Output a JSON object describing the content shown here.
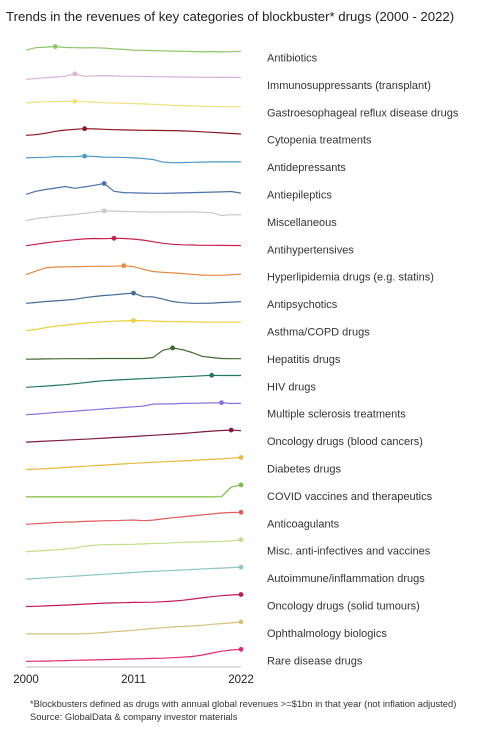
{
  "chart_data": {
    "type": "line",
    "layout": "small-multiples",
    "title": "Trends in the revenues of key categories of blockbuster* drugs (2000 - 2022)",
    "x": [
      2000,
      2001,
      2002,
      2003,
      2004,
      2005,
      2006,
      2007,
      2008,
      2009,
      2010,
      2011,
      2012,
      2013,
      2014,
      2015,
      2016,
      2017,
      2018,
      2019,
      2020,
      2021,
      2022
    ],
    "xlim": [
      2000,
      2022
    ],
    "x_ticks": [
      "2000",
      "2011",
      "2022"
    ],
    "y_scale": "relative (each row scaled to its own peak)",
    "grid": false,
    "legend": "none",
    "series": [
      {
        "name": "Antibiotics",
        "color": "#8cc665",
        "peak_year": 2003,
        "values": [
          0.7,
          0.9,
          0.95,
          1.0,
          0.92,
          0.9,
          0.88,
          0.9,
          0.87,
          0.8,
          0.76,
          0.7,
          0.68,
          0.66,
          0.64,
          0.62,
          0.6,
          0.58,
          0.55,
          0.58,
          0.55,
          0.57,
          0.6
        ]
      },
      {
        "name": "Immunosuppressants (transplant)",
        "color": "#d8b2d8",
        "peak_year": 2005,
        "values": [
          0.55,
          0.62,
          0.68,
          0.74,
          0.8,
          1.0,
          0.8,
          0.84,
          0.86,
          0.83,
          0.8,
          0.8,
          0.78,
          0.77,
          0.76,
          0.75,
          0.74,
          0.73,
          0.72,
          0.72,
          0.71,
          0.71,
          0.7
        ]
      },
      {
        "name": "Gastroesophageal reflux disease drugs",
        "color": "#f0e07a",
        "peak_year": 2005,
        "values": [
          0.86,
          0.93,
          0.96,
          0.98,
          0.98,
          1.0,
          0.96,
          0.93,
          0.88,
          0.86,
          0.83,
          0.8,
          0.78,
          0.75,
          0.72,
          0.67,
          0.64,
          0.62,
          0.6,
          0.58,
          0.56,
          0.55,
          0.55
        ]
      },
      {
        "name": "Cytopenia treatments",
        "color": "#8c1522",
        "peak_year": 2006,
        "values": [
          0.45,
          0.5,
          0.62,
          0.78,
          0.88,
          0.95,
          1.0,
          0.98,
          0.95,
          0.92,
          0.9,
          0.88,
          0.87,
          0.86,
          0.85,
          0.84,
          0.82,
          0.78,
          0.74,
          0.7,
          0.65,
          0.6,
          0.56
        ]
      },
      {
        "name": "Antidepressants",
        "color": "#4d9cc4",
        "peak_year": 2006,
        "values": [
          0.85,
          0.88,
          0.9,
          0.96,
          0.95,
          0.96,
          1.0,
          0.97,
          0.92,
          0.9,
          0.88,
          0.85,
          0.8,
          0.72,
          0.5,
          0.45,
          0.46,
          0.48,
          0.5,
          0.52,
          0.52,
          0.52,
          0.52
        ]
      },
      {
        "name": "Antiepileptics",
        "color": "#4a72ac",
        "peak_year": 2008,
        "values": [
          0.1,
          0.35,
          0.5,
          0.62,
          0.75,
          0.6,
          0.72,
          0.85,
          1.0,
          0.35,
          0.24,
          0.22,
          0.2,
          0.18,
          0.18,
          0.2,
          0.22,
          0.24,
          0.26,
          0.28,
          0.3,
          0.33,
          0.2
        ]
      },
      {
        "name": "Miscellaneous",
        "color": "#c8c8c8",
        "peak_year": 2008,
        "values": [
          0.2,
          0.35,
          0.45,
          0.55,
          0.62,
          0.7,
          0.8,
          0.9,
          1.0,
          0.98,
          0.95,
          0.93,
          0.92,
          0.9,
          0.9,
          0.9,
          0.92,
          0.92,
          0.88,
          0.85,
          0.62,
          0.68,
          0.66
        ]
      },
      {
        "name": "Antihypertensives",
        "color": "#c8204e",
        "peak_year": 2009,
        "values": [
          0.38,
          0.5,
          0.62,
          0.72,
          0.8,
          0.88,
          0.95,
          0.98,
          0.97,
          1.0,
          0.98,
          0.93,
          0.85,
          0.72,
          0.58,
          0.5,
          0.46,
          0.44,
          0.42,
          0.42,
          0.41,
          0.4,
          0.4
        ]
      },
      {
        "name": "Hyperlipidemia drugs (e.g. statins)",
        "color": "#e58a3e",
        "peak_year": 2010,
        "values": [
          0.25,
          0.55,
          0.82,
          0.88,
          0.9,
          0.92,
          0.93,
          0.95,
          0.95,
          0.96,
          1.0,
          0.92,
          0.7,
          0.52,
          0.45,
          0.4,
          0.34,
          0.28,
          0.22,
          0.2,
          0.2,
          0.25,
          0.3
        ]
      },
      {
        "name": "Antipsychotics",
        "color": "#476a99",
        "peak_year": 2011,
        "values": [
          0.15,
          0.22,
          0.3,
          0.35,
          0.42,
          0.48,
          0.62,
          0.72,
          0.8,
          0.86,
          0.93,
          1.0,
          0.7,
          0.68,
          0.5,
          0.3,
          0.2,
          0.15,
          0.15,
          0.17,
          0.22,
          0.25,
          0.28
        ]
      },
      {
        "name": "Asthma/COPD drugs",
        "color": "#f0ce3c",
        "peak_year": 2011,
        "values": [
          0.15,
          0.25,
          0.4,
          0.52,
          0.62,
          0.7,
          0.78,
          0.85,
          0.9,
          0.94,
          0.97,
          1.0,
          0.98,
          0.95,
          0.92,
          0.9,
          0.9,
          0.88,
          0.87,
          0.86,
          0.86,
          0.86,
          0.86
        ]
      },
      {
        "name": "Hepatitis drugs",
        "color": "#436a2e",
        "peak_year": 2015,
        "values": [
          0.06,
          0.07,
          0.08,
          0.09,
          0.1,
          0.1,
          0.1,
          0.11,
          0.12,
          0.12,
          0.12,
          0.12,
          0.12,
          0.2,
          0.8,
          1.0,
          0.85,
          0.62,
          0.3,
          0.2,
          0.12,
          0.1,
          0.1
        ]
      },
      {
        "name": "HIV drugs",
        "color": "#217862",
        "peak_year": 2019,
        "values": [
          0.0,
          0.05,
          0.1,
          0.16,
          0.22,
          0.3,
          0.38,
          0.48,
          0.55,
          0.6,
          0.64,
          0.68,
          0.72,
          0.76,
          0.8,
          0.84,
          0.88,
          0.92,
          0.96,
          1.0,
          0.98,
          0.98,
          0.98
        ]
      },
      {
        "name": "Multiple sclerosis treatments",
        "color": "#8573e0",
        "peak_year": 2020,
        "values": [
          0.0,
          0.05,
          0.12,
          0.18,
          0.24,
          0.3,
          0.36,
          0.42,
          0.48,
          0.54,
          0.6,
          0.66,
          0.72,
          0.88,
          0.9,
          0.9,
          0.94,
          0.95,
          0.97,
          0.98,
          1.0,
          0.93,
          0.94
        ]
      },
      {
        "name": "Oncology drugs (blood cancers)",
        "color": "#7d1b3d",
        "peak_year": 2021,
        "values": [
          0.0,
          0.04,
          0.08,
          0.12,
          0.16,
          0.2,
          0.24,
          0.28,
          0.33,
          0.38,
          0.42,
          0.47,
          0.52,
          0.57,
          0.62,
          0.67,
          0.72,
          0.78,
          0.85,
          0.92,
          0.97,
          1.0,
          0.95
        ]
      },
      {
        "name": "Diabetes drugs",
        "color": "#e8b93a",
        "peak_year": 2022,
        "values": [
          0.0,
          0.03,
          0.07,
          0.12,
          0.17,
          0.22,
          0.27,
          0.32,
          0.37,
          0.42,
          0.47,
          0.52,
          0.56,
          0.6,
          0.64,
          0.68,
          0.72,
          0.76,
          0.8,
          0.84,
          0.88,
          0.94,
          1.0
        ]
      },
      {
        "name": "COVID vaccines and therapeutics",
        "color": "#7bbd3f",
        "peak_year": 2022,
        "values": [
          0.0,
          0.0,
          0.0,
          0.0,
          0.0,
          0.0,
          0.0,
          0.0,
          0.0,
          0.0,
          0.0,
          0.0,
          0.0,
          0.0,
          0.0,
          0.0,
          0.0,
          0.0,
          0.0,
          0.0,
          0.02,
          0.82,
          1.0
        ]
      },
      {
        "name": "Anticoagulants",
        "color": "#e25c5c",
        "peak_year": 2022,
        "values": [
          0.0,
          0.05,
          0.1,
          0.15,
          0.18,
          0.2,
          0.24,
          0.27,
          0.3,
          0.3,
          0.33,
          0.36,
          0.3,
          0.35,
          0.45,
          0.55,
          0.62,
          0.7,
          0.78,
          0.86,
          0.94,
          0.98,
          1.0
        ]
      },
      {
        "name": "Misc. anti-infectives and vaccines",
        "color": "#c0e08a",
        "peak_year": 2022,
        "values": [
          0.0,
          0.05,
          0.1,
          0.16,
          0.22,
          0.3,
          0.45,
          0.55,
          0.58,
          0.6,
          0.6,
          0.62,
          0.65,
          0.68,
          0.7,
          0.74,
          0.78,
          0.8,
          0.82,
          0.84,
          0.86,
          0.9,
          1.0
        ]
      },
      {
        "name": "Autoimmune/inflammation drugs",
        "color": "#8cc8c4",
        "peak_year": 2022,
        "values": [
          0.0,
          0.05,
          0.1,
          0.15,
          0.2,
          0.25,
          0.3,
          0.35,
          0.4,
          0.45,
          0.5,
          0.55,
          0.6,
          0.64,
          0.68,
          0.72,
          0.76,
          0.8,
          0.84,
          0.88,
          0.92,
          0.96,
          1.0
        ]
      },
      {
        "name": "Oncology drugs (solid tumours)",
        "color": "#c21c54",
        "peak_year": 2022,
        "values": [
          0.0,
          0.02,
          0.05,
          0.08,
          0.12,
          0.16,
          0.2,
          0.24,
          0.28,
          0.3,
          0.32,
          0.34,
          0.35,
          0.36,
          0.4,
          0.45,
          0.52,
          0.62,
          0.72,
          0.82,
          0.9,
          0.96,
          1.0
        ]
      },
      {
        "name": "Ophthalmology biologics",
        "color": "#d8c07a",
        "peak_year": 2022,
        "values": [
          0.0,
          0.0,
          0.0,
          0.0,
          0.0,
          0.0,
          0.02,
          0.06,
          0.12,
          0.18,
          0.24,
          0.3,
          0.38,
          0.45,
          0.52,
          0.58,
          0.62,
          0.66,
          0.72,
          0.8,
          0.86,
          0.92,
          1.0
        ]
      },
      {
        "name": "Rare disease drugs",
        "color": "#e02a74",
        "peak_year": 2022,
        "values": [
          0.0,
          0.01,
          0.02,
          0.04,
          0.06,
          0.08,
          0.1,
          0.12,
          0.14,
          0.16,
          0.18,
          0.2,
          0.22,
          0.24,
          0.26,
          0.3,
          0.34,
          0.4,
          0.52,
          0.68,
          0.84,
          0.94,
          1.0
        ]
      }
    ],
    "footnote": "*Blockbusters defined as drugs with annual global revenues >=$1bn in that year (not inflation adjusted)",
    "source": "Source: GlobalData & company investor materials"
  }
}
